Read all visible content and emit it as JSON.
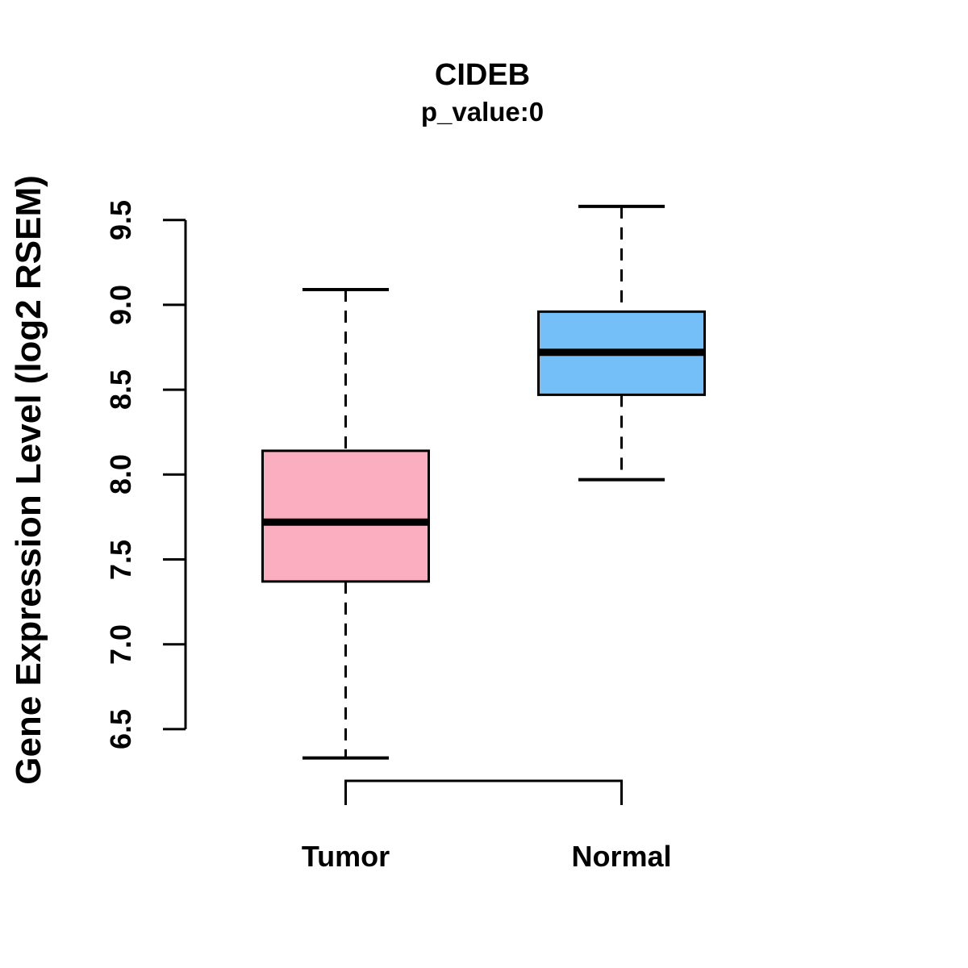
{
  "figure": {
    "title": "CIDEB",
    "subtitle": "p_value:0",
    "ylabel": "Gene Expression Level (log2 RSEM)"
  },
  "chart_data": {
    "type": "boxplot",
    "title": "CIDEB",
    "subtitle": "p_value:0",
    "xlabel": "",
    "ylabel": "Gene Expression Level (log2 RSEM)",
    "categories": [
      "Tumor",
      "Normal"
    ],
    "yticks": [
      6.5,
      7.0,
      7.5,
      8.0,
      8.5,
      9.0,
      9.5
    ],
    "ylim": [
      6.2,
      9.7
    ],
    "grid": false,
    "legend": "none",
    "series": [
      {
        "name": "Tumor",
        "fill_color": "#FCAEC1",
        "whisker_low": 6.33,
        "q1": 7.37,
        "median": 7.72,
        "q3": 8.14,
        "whisker_high": 9.09
      },
      {
        "name": "Normal",
        "fill_color": "#74BFF7",
        "whisker_low": 7.97,
        "q1": 8.47,
        "median": 8.72,
        "q3": 8.96,
        "whisker_high": 9.58
      }
    ],
    "stroke_color": "#000000",
    "significance_bracket": {
      "connects": [
        "Tumor",
        "Normal"
      ],
      "annotation": ""
    }
  }
}
